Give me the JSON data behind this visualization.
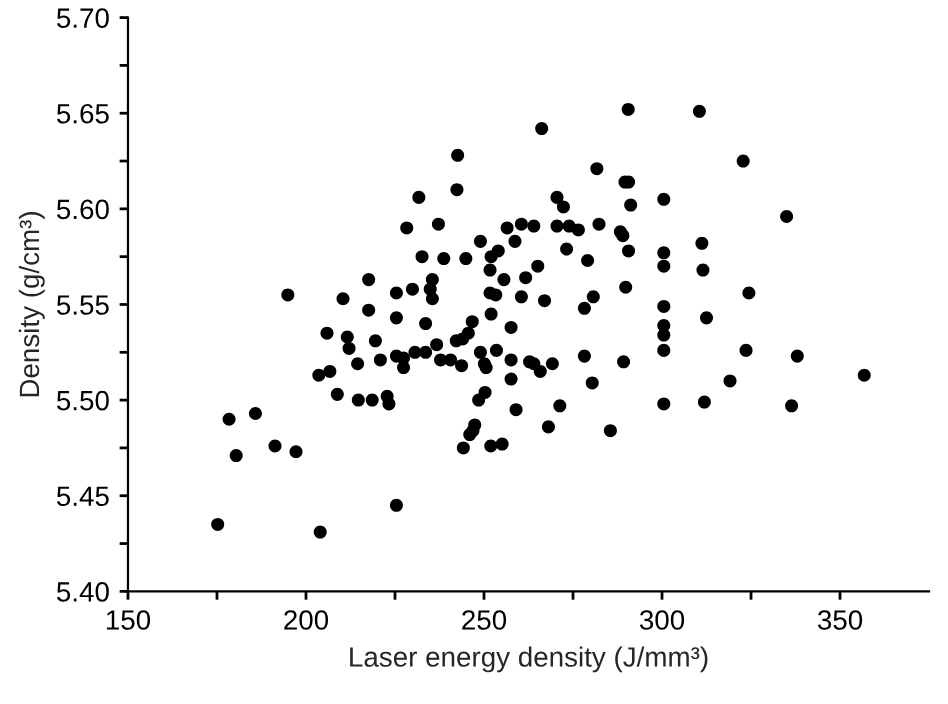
{
  "chart_data": {
    "type": "scatter",
    "xlabel": "Laser energy density (J/mm³)",
    "ylabel": "Density (g/cm³)",
    "xlim": [
      150,
      375
    ],
    "ylim": [
      5.4,
      5.7
    ],
    "xticks": [
      150,
      {
        "value": 175,
        "label": null
      },
      200,
      {
        "value": 225,
        "label": null
      },
      250,
      {
        "value": 275,
        "label": null
      },
      300,
      {
        "value": 325,
        "label": null
      },
      350
    ],
    "yticks": [
      {
        "value": 5.4,
        "label": "5.40"
      },
      {
        "value": 5.425,
        "label": null
      },
      {
        "value": 5.45,
        "label": "5.45"
      },
      {
        "value": 5.475,
        "label": null
      },
      {
        "value": 5.5,
        "label": "5.50"
      },
      {
        "value": 5.525,
        "label": null
      },
      {
        "value": 5.55,
        "label": "5.55"
      },
      {
        "value": 5.575,
        "label": null
      },
      {
        "value": 5.6,
        "label": "5.60"
      },
      {
        "value": 5.625,
        "label": null
      },
      {
        "value": 5.65,
        "label": "5.65"
      },
      {
        "value": 5.675,
        "label": null
      },
      {
        "value": 5.7,
        "label": "5.70"
      }
    ],
    "grid": false,
    "marker": "circle",
    "series": [
      {
        "color": "#000000",
        "x": [
          175.2,
          178.4,
          180.4,
          185.8,
          191.3,
          197.2,
          194.9,
          204.0,
          203.6,
          205.9,
          206.7,
          208.8,
          214.7,
          218.6,
          222.8,
          223.3,
          225.4,
          244.2,
          246.0,
          246.9,
          247.4,
          248.5,
          250.3,
          251.9,
          255.1,
          259.0,
          268.1,
          271.3,
          285.5,
          300.5,
          311.9,
          336.4,
          290.5,
          310.5,
          266.2,
          322.8,
          281.7,
          289.6,
          290.6,
          270.5,
          300.5,
          272.3,
          291.2,
          335.0,
          256.5,
          260.5,
          264.0,
          270.5,
          273.9,
          276.5,
          282.3,
          288.3,
          289.0,
          258.7,
          273.2,
          290.6,
          300.5,
          311.2,
          279.1,
          300.5,
          311.5,
          265.1,
          255.6,
          261.7,
          289.8,
          260.5,
          280.7,
          267.0,
          324.4,
          278.2,
          300.5,
          312.5,
          257.6,
          300.5,
          300.5,
          300.5,
          323.6,
          338.0,
          257.6,
          262.8,
          264.0,
          265.8,
          269.2,
          278.2,
          289.2,
          257.6,
          280.4,
          319.1,
          356.8,
          242.4,
          231.7,
          228.3,
          237.2,
          249.0,
          232.6,
          238.7,
          244.9,
          252.0,
          254.0,
          251.7,
          217.6,
          235.5,
          210.4,
          225.4,
          229.9,
          234.9,
          235.5,
          251.7,
          253.3,
          217.6,
          225.4,
          252.0,
          211.6,
          212.1,
          219.5,
          233.6,
          246.7,
          245.6,
          244.0,
          242.2,
          236.7,
          253.5,
          249.0,
          214.5,
          220.9,
          225.4,
          227.4,
          227.4,
          230.6,
          233.6,
          237.8,
          240.6,
          243.7,
          250.1,
          250.6,
          242.6
        ],
        "values": [
          5.435,
          5.49,
          5.471,
          5.493,
          5.476,
          5.473,
          5.555,
          5.431,
          5.513,
          5.535,
          5.515,
          5.503,
          5.5,
          5.5,
          5.502,
          5.498,
          5.445,
          5.475,
          5.482,
          5.484,
          5.487,
          5.5,
          5.504,
          5.476,
          5.477,
          5.495,
          5.486,
          5.497,
          5.484,
          5.498,
          5.499,
          5.497,
          5.652,
          5.651,
          5.642,
          5.625,
          5.621,
          5.614,
          5.614,
          5.606,
          5.605,
          5.601,
          5.602,
          5.596,
          5.59,
          5.592,
          5.591,
          5.591,
          5.591,
          5.589,
          5.592,
          5.588,
          5.586,
          5.583,
          5.579,
          5.578,
          5.577,
          5.582,
          5.573,
          5.57,
          5.568,
          5.57,
          5.563,
          5.564,
          5.559,
          5.554,
          5.554,
          5.552,
          5.556,
          5.548,
          5.549,
          5.543,
          5.538,
          5.539,
          5.534,
          5.526,
          5.526,
          5.523,
          5.521,
          5.52,
          5.519,
          5.515,
          5.519,
          5.523,
          5.52,
          5.511,
          5.509,
          5.51,
          5.513,
          5.61,
          5.606,
          5.59,
          5.592,
          5.583,
          5.575,
          5.574,
          5.574,
          5.575,
          5.578,
          5.568,
          5.563,
          5.563,
          5.553,
          5.556,
          5.558,
          5.558,
          5.553,
          5.556,
          5.555,
          5.547,
          5.543,
          5.545,
          5.533,
          5.527,
          5.531,
          5.54,
          5.541,
          5.535,
          5.532,
          5.531,
          5.529,
          5.526,
          5.525,
          5.519,
          5.521,
          5.523,
          5.522,
          5.517,
          5.525,
          5.525,
          5.521,
          5.521,
          5.518,
          5.519,
          5.517,
          5.628
        ]
      }
    ]
  }
}
